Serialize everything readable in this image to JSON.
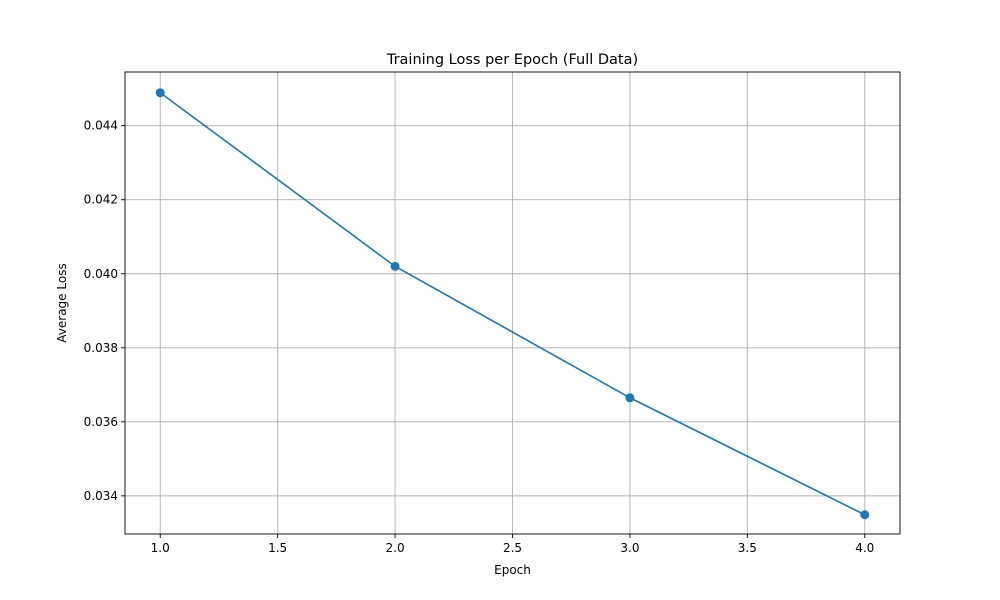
{
  "chart_data": {
    "type": "line",
    "title": "Training Loss per Epoch (Full Data)",
    "xlabel": "Epoch",
    "ylabel": "Average Loss",
    "xlim": [
      0.85,
      4.15
    ],
    "ylim": [
      0.03297,
      0.04545
    ],
    "x_ticks": [
      1.0,
      1.5,
      2.0,
      2.5,
      3.0,
      3.5,
      4.0
    ],
    "x_tick_labels": [
      "1.0",
      "1.5",
      "2.0",
      "2.5",
      "3.0",
      "3.5",
      "4.0"
    ],
    "y_ticks": [
      0.034,
      0.036,
      0.038,
      0.04,
      0.042,
      0.044
    ],
    "y_tick_labels": [
      "0.034",
      "0.036",
      "0.038",
      "0.040",
      "0.042",
      "0.044"
    ],
    "grid": true,
    "series": [
      {
        "color": "#1f77b4",
        "marker": "circle",
        "x": [
          1,
          2,
          3,
          4
        ],
        "y": [
          0.04489,
          0.0402,
          0.03665,
          0.03349
        ]
      }
    ]
  }
}
